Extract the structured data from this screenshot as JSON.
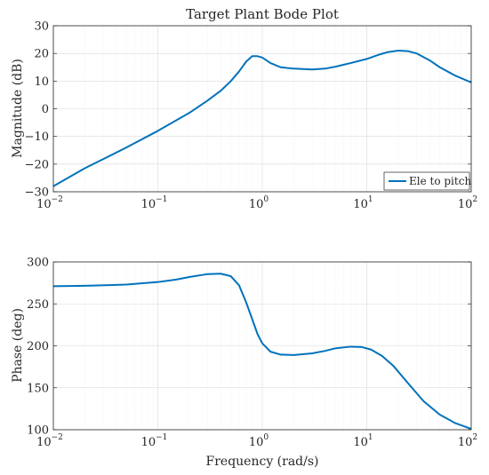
{
  "chart_data": [
    {
      "type": "line",
      "title": "Target Plant Bode Plot",
      "xlabel": "",
      "ylabel": "Magnitude (dB)",
      "xscale": "log",
      "xlim": [
        0.01,
        100
      ],
      "ylim": [
        -30,
        30
      ],
      "grid": true,
      "legend_position": "bottom-right",
      "x_ticks": [
        {
          "base": "10",
          "exp": "−2"
        },
        {
          "base": "10",
          "exp": "−1"
        },
        {
          "base": "10",
          "exp": "0"
        },
        {
          "base": "10",
          "exp": "1"
        },
        {
          "base": "10",
          "exp": "2"
        }
      ],
      "y_ticks": [
        "−30",
        "−20",
        "−10",
        "0",
        "10",
        "20",
        "30"
      ],
      "series": [
        {
          "name": "Ele to pitch",
          "color": "#0072bd",
          "x": [
            0.01,
            0.02,
            0.05,
            0.1,
            0.2,
            0.3,
            0.4,
            0.5,
            0.6,
            0.7,
            0.8,
            0.9,
            1.0,
            1.2,
            1.5,
            2,
            3,
            4,
            5,
            7,
            10,
            13,
            16,
            20,
            25,
            30,
            40,
            50,
            70,
            100
          ],
          "y": [
            -28,
            -21.5,
            -14,
            -8,
            -1.5,
            3,
            6.5,
            10,
            13.5,
            17,
            19,
            19,
            18.5,
            16.5,
            15,
            14.5,
            14.2,
            14.5,
            15.2,
            16.5,
            18,
            19.5,
            20.5,
            21,
            20.8,
            20,
            17.5,
            15,
            12,
            9.5
          ]
        }
      ]
    },
    {
      "type": "line",
      "title": "",
      "xlabel": "Frequency (rad/s)",
      "ylabel": "Phase (deg)",
      "xscale": "log",
      "xlim": [
        0.01,
        100
      ],
      "ylim": [
        100,
        300
      ],
      "grid": true,
      "x_ticks": [
        {
          "base": "10",
          "exp": "−2"
        },
        {
          "base": "10",
          "exp": "−1"
        },
        {
          "base": "10",
          "exp": "0"
        },
        {
          "base": "10",
          "exp": "1"
        },
        {
          "base": "10",
          "exp": "2"
        }
      ],
      "y_ticks": [
        "100",
        "150",
        "200",
        "250",
        "300"
      ],
      "series": [
        {
          "name": "",
          "color": "#0072bd",
          "x": [
            0.01,
            0.02,
            0.05,
            0.1,
            0.15,
            0.2,
            0.3,
            0.4,
            0.5,
            0.6,
            0.7,
            0.8,
            0.9,
            1.0,
            1.2,
            1.5,
            2,
            3,
            4,
            5,
            7,
            9,
            11,
            14,
            18,
            25,
            35,
            50,
            70,
            100
          ],
          "y": [
            271,
            271.5,
            273,
            276,
            279,
            282,
            285.5,
            286,
            283,
            272,
            252,
            232,
            214,
            203,
            193,
            189.5,
            189,
            191,
            194,
            197,
            199,
            198.5,
            195.5,
            188,
            176,
            155,
            134,
            118,
            108,
            101
          ]
        }
      ]
    }
  ]
}
